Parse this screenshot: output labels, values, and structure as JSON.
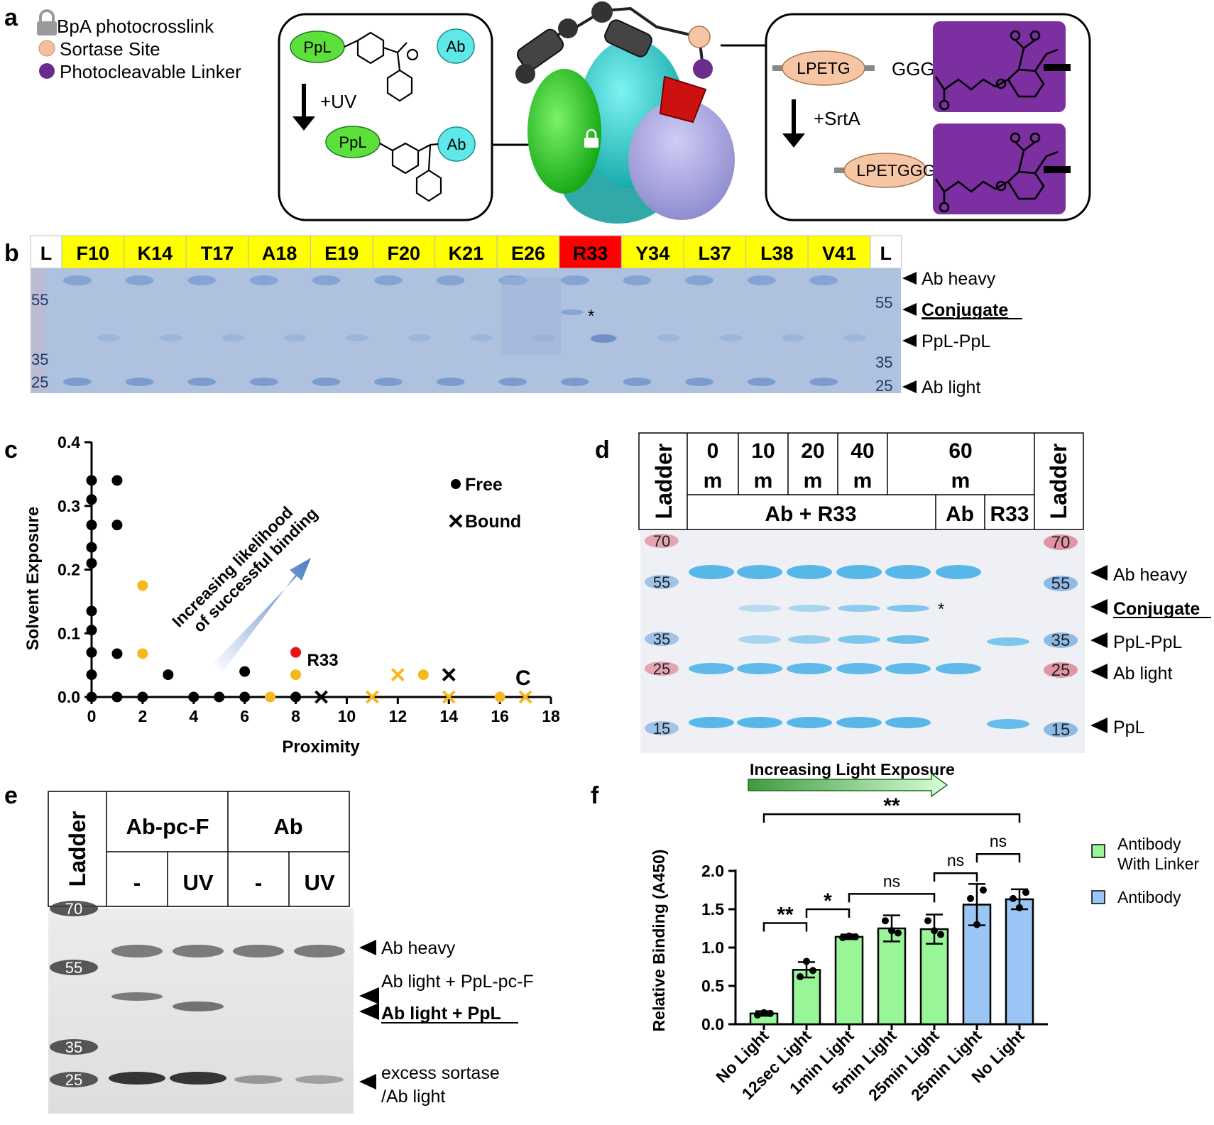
{
  "panels": {
    "a": {
      "letter": "a",
      "legend": [
        "BpA photocrosslink",
        "Sortase Site",
        "Photocleavable Linker"
      ],
      "legend_colors": [
        "#9a9a9a",
        "#f6be9a",
        "#6a2d8e"
      ],
      "left_box": {
        "ppl_top": "PpL",
        "ab_top": "Ab",
        "uv": "+UV",
        "ppl_bottom": "PpL",
        "ab_bottom": "Ab"
      },
      "right_box": {
        "lpetg": "LPETG",
        "ggg": "GGG",
        "srta": "+SrtA",
        "lpetggg": "LPETGGG"
      },
      "colors": {
        "ppl": "#5ee03c",
        "ab": "#5fe8e8",
        "sortase": "#f6c5a4",
        "linker": "#7b2fa0",
        "protein_green": "#22c01c",
        "protein_cyan": "#1ec6c6",
        "protein_lilac": "#a9a6e6",
        "red_block": "#cc1111"
      }
    },
    "b": {
      "letter": "b",
      "lanes": [
        "L",
        "F10",
        "K14",
        "T17",
        "A18",
        "E19",
        "F20",
        "K21",
        "E26",
        "R33",
        "Y34",
        "L37",
        "L38",
        "V41",
        "L"
      ],
      "highlight_lane": "R33",
      "ladder_left": [
        "55",
        "35",
        "25"
      ],
      "ladder_right": [
        "55",
        "35",
        "25"
      ],
      "asterisk": "*",
      "bands": [
        "Ab heavy",
        "Conjugate",
        "PpL-PpL",
        "Ab light"
      ],
      "colors": {
        "lane_bg": "#ffff00",
        "highlight": "#ff0000",
        "gel": "#aec2e0"
      }
    },
    "c": {
      "letter": "c",
      "chart_data": {
        "type": "scatter",
        "xlabel": "Proximity",
        "ylabel": "Solvent Exposure",
        "xlim": [
          0,
          18
        ],
        "ylim": [
          0,
          0.4
        ],
        "xticks": [
          "0",
          "2",
          "4",
          "6",
          "8",
          "10",
          "12",
          "14",
          "16",
          "18"
        ],
        "yticks": [
          "0.0",
          "0.1",
          "0.2",
          "0.3",
          "0.4"
        ],
        "legend": [
          "Free",
          "Bound"
        ],
        "annotation": "Increasing likelihood of successful binding",
        "label_r33": "R33",
        "label_c": "C",
        "series": [
          {
            "name": "Free",
            "marker": "circle",
            "color": "#000000",
            "points": [
              [
                0,
                0.34
              ],
              [
                0,
                0.31
              ],
              [
                0,
                0.27
              ],
              [
                0,
                0.235
              ],
              [
                0,
                0.21
              ],
              [
                0,
                0.135
              ],
              [
                0,
                0.105
              ],
              [
                0,
                0.07
              ],
              [
                0,
                0.035
              ],
              [
                0,
                0.0
              ],
              [
                1,
                0.34
              ],
              [
                1,
                0.27
              ],
              [
                1,
                0.068
              ],
              [
                1,
                0.0
              ],
              [
                2,
                0.0
              ],
              [
                3,
                0.035
              ],
              [
                4,
                0.0
              ],
              [
                5,
                0.0
              ],
              [
                6,
                0.04
              ],
              [
                6,
                0.0
              ],
              [
                8,
                0.0
              ]
            ]
          },
          {
            "name": "Free (yellow)",
            "marker": "circle",
            "color": "#f6b81c",
            "points": [
              [
                2,
                0.175
              ],
              [
                2,
                0.068
              ],
              [
                7,
                0.0
              ],
              [
                8,
                0.035
              ],
              [
                13,
                0.035
              ],
              [
                16,
                0.0
              ]
            ]
          },
          {
            "name": "R33",
            "marker": "circle",
            "color": "#ee1111",
            "points": [
              [
                8,
                0.07
              ]
            ]
          },
          {
            "name": "Bound",
            "marker": "x",
            "color": "#000000",
            "points": [
              [
                9,
                0.0
              ],
              [
                14,
                0.035
              ]
            ]
          },
          {
            "name": "Bound (yellow)",
            "marker": "x",
            "color": "#f6b81c",
            "points": [
              [
                11,
                0.0
              ],
              [
                12,
                0.035
              ],
              [
                14,
                0.0
              ],
              [
                17,
                0.0
              ]
            ]
          }
        ]
      }
    },
    "d": {
      "letter": "d",
      "ladder": "Ladder",
      "times": [
        {
          "num": "0",
          "unit": "m"
        },
        {
          "num": "10",
          "unit": "m"
        },
        {
          "num": "20",
          "unit": "m"
        },
        {
          "num": "40",
          "unit": "m"
        },
        {
          "num": "60",
          "unit": "m"
        }
      ],
      "groups": [
        "Ab + R33",
        "Ab",
        "R33"
      ],
      "ladder_left": [
        "70",
        "55",
        "35",
        "25",
        "15"
      ],
      "ladder_right": [
        "70",
        "55",
        "35",
        "25",
        "15"
      ],
      "asterisk": "*",
      "bands": [
        "Ab heavy",
        "Conjugate",
        "PpL-PpL",
        "Ab light",
        "PpL"
      ],
      "colors": {
        "gel": "#eef0f6",
        "band": "#4fb3e8"
      }
    },
    "e": {
      "letter": "e",
      "ladder": "Ladder",
      "groups": [
        "Ab-pc-F",
        "Ab"
      ],
      "conditions": [
        "-",
        "UV",
        "-",
        "UV"
      ],
      "ladder_values": [
        "70",
        "55",
        "35",
        "25"
      ],
      "bands": [
        "Ab heavy",
        "Ab light + PpL-pc-F",
        "Ab light + PpL",
        "excess sortase",
        "/Ab light"
      ]
    },
    "f": {
      "letter": "f",
      "arrow_label": "Increasing Light Exposure",
      "chart_data": {
        "type": "bar",
        "ylabel": "Relative Binding (A450)",
        "ylim": [
          0,
          2.0
        ],
        "yticks": [
          "0.0",
          "0.5",
          "1.0",
          "1.5",
          "2.0"
        ],
        "categories": [
          "No Light",
          "12sec Light",
          "1min Light",
          "5min Light",
          "25min Light",
          "25min Light",
          "No Light"
        ],
        "values": [
          0.14,
          0.71,
          1.14,
          1.25,
          1.24,
          1.56,
          1.63
        ],
        "errors": [
          0.03,
          0.1,
          0.03,
          0.17,
          0.19,
          0.27,
          0.13
        ],
        "points": [
          [
            0.12,
            0.15,
            0.14
          ],
          [
            0.62,
            0.82,
            0.7
          ],
          [
            1.13,
            1.15,
            1.14
          ],
          [
            1.35,
            1.22,
            1.19
          ],
          [
            1.35,
            1.22,
            1.17
          ],
          [
            1.64,
            1.3,
            1.75
          ],
          [
            1.64,
            1.52,
            1.72
          ]
        ],
        "group": [
          0,
          0,
          0,
          0,
          0,
          1,
          1
        ],
        "legend": [
          "Antibody With Linker",
          "Antibody"
        ],
        "colors": [
          "#98f598",
          "#9ac5f5"
        ],
        "significance": [
          "**",
          "*",
          "ns",
          "ns",
          "ns",
          "**"
        ]
      }
    }
  }
}
